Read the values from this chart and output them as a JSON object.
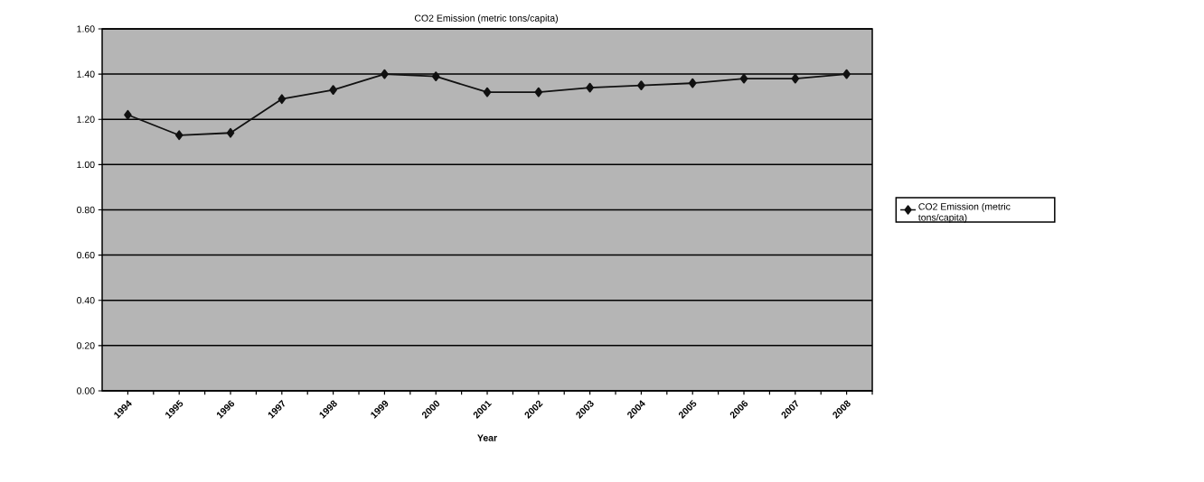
{
  "chart_data": {
    "type": "line",
    "title": "CO2 Emission (metric tons/capita)",
    "xlabel": "Year",
    "categories": [
      "1994",
      "1995",
      "1996",
      "1997",
      "1998",
      "1999",
      "2000",
      "2001",
      "2002",
      "2003",
      "2004",
      "2005",
      "2006",
      "2007",
      "2008"
    ],
    "series": [
      {
        "name": "CO2 Emission (metric tons/capita)",
        "color": "#111111",
        "values": [
          1.22,
          1.13,
          1.14,
          1.29,
          1.33,
          1.4,
          1.39,
          1.32,
          1.32,
          1.34,
          1.35,
          1.36,
          1.38,
          1.38,
          1.4
        ]
      }
    ],
    "ylim": [
      0,
      1.6
    ],
    "yticks": [
      {
        "value": 0,
        "label": "0.00"
      },
      {
        "value": 0.2,
        "label": "0.20"
      },
      {
        "value": 0.4,
        "label": "0.40"
      },
      {
        "value": 0.6,
        "label": "0.60"
      },
      {
        "value": 0.8,
        "label": "0.80"
      },
      {
        "value": 1.0,
        "label": "1.00"
      },
      {
        "value": 1.2,
        "label": "1.20"
      },
      {
        "value": 1.4,
        "label": "1.40"
      },
      {
        "value": 1.6,
        "label": "1.60"
      }
    ],
    "grid": "y",
    "legend": "right",
    "marker": "diamond",
    "line_style": "solid"
  }
}
